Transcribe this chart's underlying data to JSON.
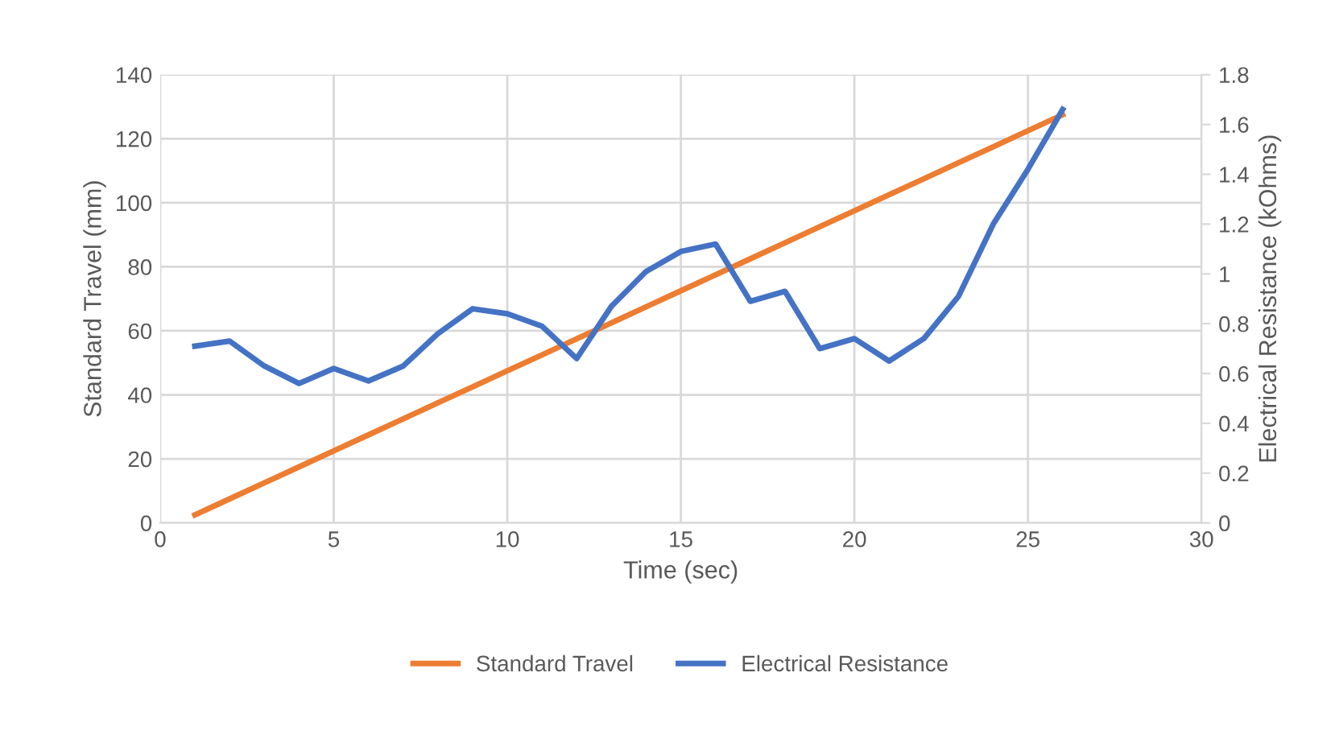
{
  "chart_data": {
    "type": "line",
    "xlabel": "Time (sec)",
    "ylabel": "Standard Travel (mm)",
    "y2label": "Electrical Resistance (kOhms)",
    "x": [
      1,
      2,
      3,
      4,
      5,
      6,
      7,
      8,
      9,
      10,
      11,
      12,
      13,
      14,
      15,
      16,
      17,
      18,
      19,
      20,
      21,
      22,
      23,
      24,
      25,
      26
    ],
    "series": [
      {
        "name": "Standard Travel",
        "color": "#ed7d31",
        "values": [
          2.5,
          7.5,
          12.5,
          17.5,
          22.5,
          27.5,
          32.5,
          37.5,
          42.5,
          47.5,
          52.5,
          57.5,
          62.5,
          67.5,
          72.5,
          77.5,
          82.5,
          87.5,
          92.5,
          97.5,
          102.5,
          107.5,
          112.5,
          117.5,
          122.5,
          127.5
        ]
      },
      {
        "name": "Electrical Resistance",
        "color": "#4472c4",
        "axis": "y2",
        "values": [
          0.71,
          0.73,
          0.63,
          0.56,
          0.62,
          0.57,
          0.63,
          0.76,
          0.86,
          0.84,
          0.79,
          0.66,
          0.87,
          1.01,
          1.09,
          1.12,
          0.89,
          0.93,
          0.7,
          0.74,
          0.65,
          0.74,
          0.91,
          1.2,
          1.42,
          1.66
        ]
      }
    ],
    "xlim": [
      0,
      30
    ],
    "xticks": [
      0,
      5,
      10,
      15,
      20,
      25,
      30
    ],
    "ylim": [
      0,
      140
    ],
    "yticks": [
      0,
      20,
      40,
      60,
      80,
      100,
      120,
      140
    ],
    "y2lim": [
      0,
      1.8
    ],
    "y2ticks": [
      0,
      {
        "value": 0.2,
        "label": "0.2"
      },
      {
        "value": 0.4,
        "label": "0.4"
      },
      {
        "value": 0.6,
        "label": "0.6"
      },
      {
        "value": 0.8,
        "label": "0.8"
      },
      1,
      {
        "value": 1.2,
        "label": "1.2"
      },
      {
        "value": 1.4,
        "label": "1.4"
      },
      {
        "value": 1.6,
        "label": "1.6"
      },
      {
        "value": 1.8,
        "label": "1.8"
      }
    ],
    "grid": true,
    "legend": "bottom",
    "marker": "none",
    "line_style": "solid"
  }
}
